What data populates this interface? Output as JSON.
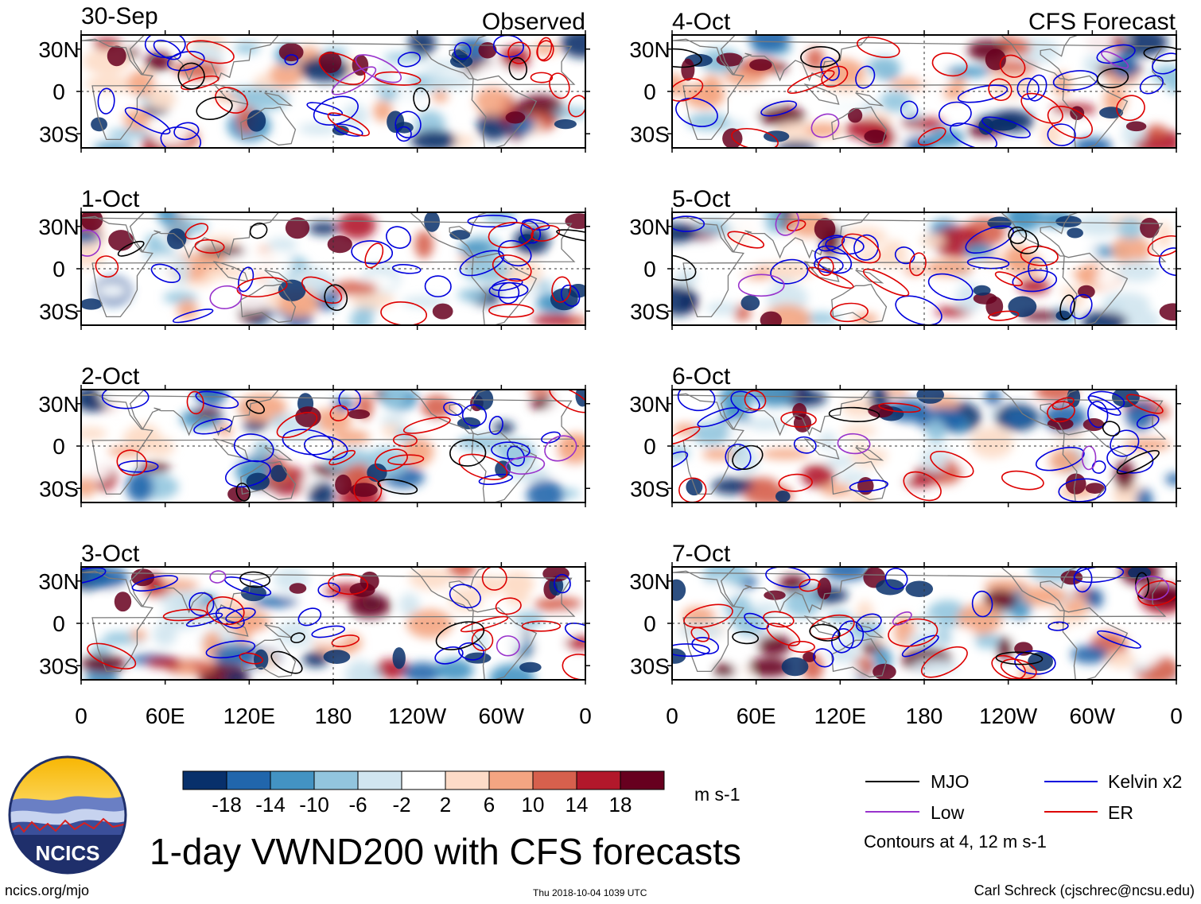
{
  "title": "1-day VWND200 with CFS forecasts",
  "site": "ncics.org/mjo",
  "timestamp": "Thu 2018-10-04 1039 UTC",
  "author": "Carl Schreck (cjschrec@ncsu.edu)",
  "logo_text": "NCICS",
  "contour_note": "Contours at 4, 12 m s-1",
  "colorbar": {
    "units": "m s-1",
    "tick_labels": [
      "-18",
      "-14",
      "-10",
      "-6",
      "-2",
      "2",
      "6",
      "10",
      "14",
      "18"
    ],
    "colors": [
      "#08306b",
      "#2166ac",
      "#4393c3",
      "#92c5de",
      "#d1e5f0",
      "#ffffff",
      "#fddbc7",
      "#f4a582",
      "#d6604d",
      "#b2182b",
      "#67001f"
    ]
  },
  "legend": [
    {
      "label": "MJO",
      "color": "#000000"
    },
    {
      "label": "Kelvin x2",
      "color": "#0000dd"
    },
    {
      "label": "Low",
      "color": "#9933cc"
    },
    {
      "label": "ER",
      "color": "#dd0000"
    }
  ],
  "chart_data": {
    "type": "heatmap",
    "variable": "VWND200 (200-hPa meridional wind anomaly)",
    "x_tick_labels": [
      "0",
      "60E",
      "120E",
      "180",
      "120W",
      "60W",
      "0"
    ],
    "y_tick_labels": [
      "30N",
      "0",
      "30S"
    ],
    "xlim": [
      0,
      360
    ],
    "ylim": [
      -40,
      40
    ],
    "contour_levels": [
      4,
      12
    ],
    "columns": [
      {
        "label": "Observed",
        "panels": [
          "30-Sep",
          "1-Oct",
          "2-Oct",
          "3-Oct"
        ]
      },
      {
        "label": "CFS Forecast",
        "panels": [
          "4-Oct",
          "5-Oct",
          "6-Oct",
          "7-Oct"
        ]
      }
    ]
  }
}
